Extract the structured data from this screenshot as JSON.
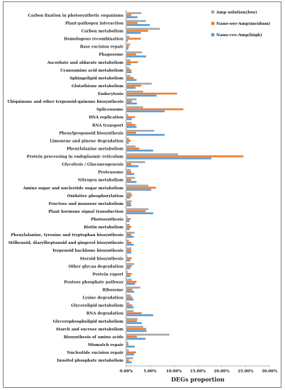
{
  "chart_data": {
    "type": "bar",
    "orientation": "horizontal",
    "xlabel": "DEGs proportion",
    "xlim": [
      0,
      30
    ],
    "ticks": [
      "0.00%",
      "5.00%",
      "10.00%",
      "15.00%",
      "20.00%",
      "25.00%",
      "30.00%"
    ],
    "legend_position": "top-right",
    "grid": false,
    "categories": [
      "Carbon fixation in photosynthetic organisms",
      "Plant-pathogen interaction",
      "Carbon metabolism",
      "Homologous recombination",
      "Base excision repair",
      "Phagosome",
      "Ascorbate and aldarate metabolism",
      "Cyanoamino acid metabolism",
      "Sphingolipid metabolism",
      "Glutathione metabolism",
      "Endocytosis",
      "Ubiquinone and other terpenoid-quinone biosynthesis",
      "Spliceosome",
      "DNA replication",
      "RNA transport",
      "Phenylpropanoid biosynthesis",
      "Limonene and pinene degradation",
      "Phenylalanine metabolism",
      "Protein processing in endoplasmic reticulum",
      "Glycolysis / Gluconeogenesis",
      "Proteasome",
      "Nitrogen metabolism",
      "Amino sugar and nucleotide sugar metabolism",
      "Oxidative phosphorylation",
      "Fructose and mannose metabolism",
      "Plant hormone signal transduction",
      "Photosynthesis",
      "Biotin metabolism",
      "Phenylalanine, tyrosine and tryptophan biosynthesis",
      "Stilbenoid, diarylheptanoid and gingerol biosynthesis",
      "Terpenoid backbone biosynthesis",
      "Steroid biosynthesis",
      "Other glycan degradation",
      "Protein export",
      "Pentose phosphate pathway",
      "Ribosome",
      "Lysine degradation",
      "Glycerolipid metabolism",
      "RNA degradation",
      "Glycerophospholipid metabolism",
      "Starch and sucrose metabolism",
      "Biosynthesis of amino acids",
      "Mismatch repair",
      "Nucleotide excision repair",
      "Inositol phosphate metabolism"
    ],
    "series": [
      {
        "name": "Amp solution(low)",
        "color": "#a6a6a6",
        "values": [
          3.1,
          4.1,
          7.0,
          0.6,
          0.8,
          3.3,
          0.8,
          0.6,
          0.8,
          5.3,
          3.5,
          2.1,
          3.5,
          0.4,
          1.1,
          5.8,
          0.5,
          1.9,
          10.8,
          3.9,
          0.9,
          1.8,
          4.6,
          1.0,
          1.1,
          4.6,
          0.2,
          0.7,
          1.7,
          0.5,
          1.0,
          0.2,
          1.6,
          0.3,
          1.1,
          2.9,
          0.9,
          0.6,
          1.5,
          2.3,
          3.5,
          9.0,
          0.4,
          0.5,
          1.4
        ]
      },
      {
        "name": "Nano-soy-Amp(meidum)",
        "color": "#ed7d31",
        "values": [
          1.0,
          2.3,
          4.5,
          3.0,
          0.5,
          2.0,
          2.4,
          1.0,
          1.5,
          3.1,
          10.6,
          1.1,
          11.9,
          1.8,
          1.9,
          2.0,
          0.9,
          2.7,
          24.5,
          1.0,
          1.0,
          1.0,
          6.2,
          1.2,
          0.9,
          4.0,
          0.9,
          1.0,
          1.0,
          1.0,
          1.0,
          1.1,
          1.1,
          1.1,
          2.1,
          1.2,
          1.2,
          1.2,
          3.2,
          2.2,
          4.1,
          2.2,
          0.4,
          2.0,
          0.5
        ]
      },
      {
        "name": "Nano-cre-Amp(high)",
        "color": "#5b9bd5",
        "values": [
          2.3,
          4.9,
          3.0,
          0.3,
          0.4,
          4.1,
          0.9,
          1.1,
          2.1,
          1.9,
          6.3,
          2.2,
          8.0,
          1.1,
          2.1,
          8.0,
          0.5,
          5.6,
          17.8,
          2.5,
          1.6,
          2.1,
          5.2,
          0.8,
          1.0,
          5.6,
          0.6,
          0.7,
          1.5,
          1.5,
          1.0,
          0.8,
          0.8,
          0.8,
          1.8,
          1.6,
          1.5,
          1.5,
          5.6,
          3.2,
          4.2,
          4.0,
          1.7,
          1.6,
          1.1
        ]
      }
    ]
  }
}
